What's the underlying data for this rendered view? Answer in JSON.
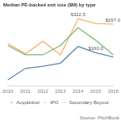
{
  "chart_data": {
    "type": "line",
    "title": "Median PE-backed exit size ($M) by type",
    "source": "Source: PitchBook",
    "categories": [
      "2010",
      "2011",
      "2012",
      "2013",
      "2014",
      "2015",
      "2016"
    ],
    "series": [
      {
        "name": "Acquisition",
        "color": "#5a86b0",
        "values": [
          30,
          85,
          95,
          110,
          190,
          160,
          140
        ],
        "value_labels": [
          null,
          null,
          null,
          null,
          null,
          "$160.0",
          null
        ]
      },
      {
        "name": "IPO",
        "color": "#7cb87a",
        "values": [
          195,
          150,
          150,
          195,
          280,
          220,
          150
        ]
      },
      {
        "name": "Secondary Buyout",
        "color": "#f5b26b",
        "values": [
          205,
          155,
          215,
          150,
          322.5,
          300,
          297
        ],
        "value_labels": [
          null,
          null,
          null,
          null,
          "$322.5",
          null,
          "$297.0"
        ]
      }
    ],
    "ylim": [
      0,
      350
    ],
    "grid": false,
    "legend": "bottom",
    "tick_labels": "x",
    "data_labels": true
  }
}
